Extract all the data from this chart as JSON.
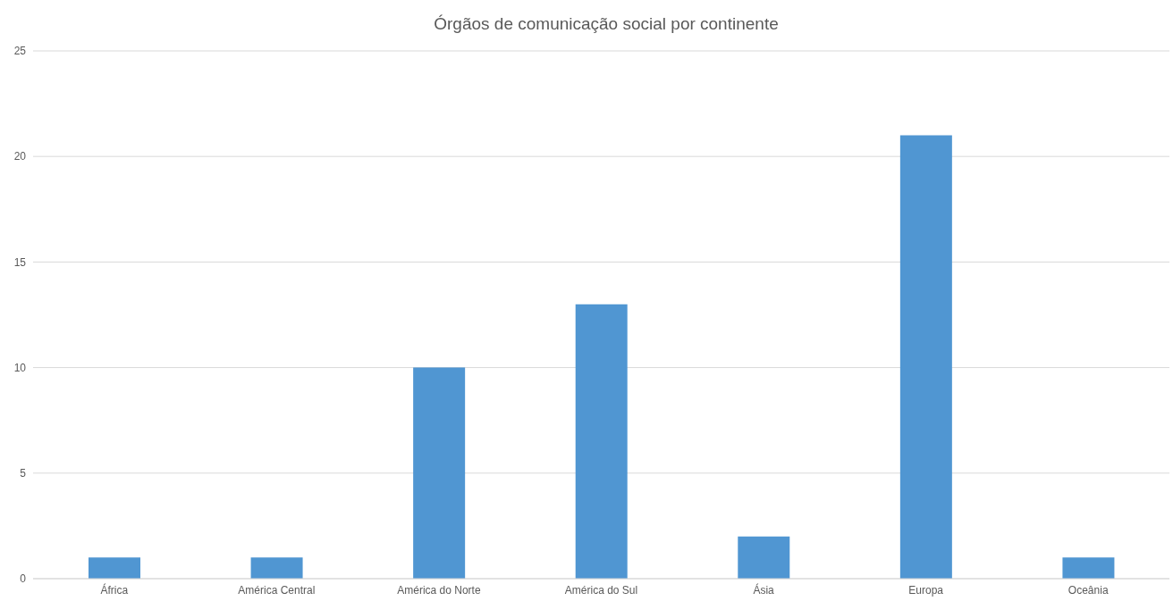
{
  "chart_data": {
    "type": "bar",
    "title": "Órgãos de comunicação social por continente",
    "categories": [
      "África",
      "América Central",
      "América do Norte",
      "América do Sul",
      "Ásia",
      "Europa",
      "Oceânia"
    ],
    "values": [
      1,
      1,
      10,
      13,
      2,
      21,
      1
    ],
    "color": "#5096d2",
    "ylim": [
      0,
      25
    ],
    "yticks": [
      0,
      5,
      10,
      15,
      20,
      25
    ],
    "grid": "y"
  }
}
